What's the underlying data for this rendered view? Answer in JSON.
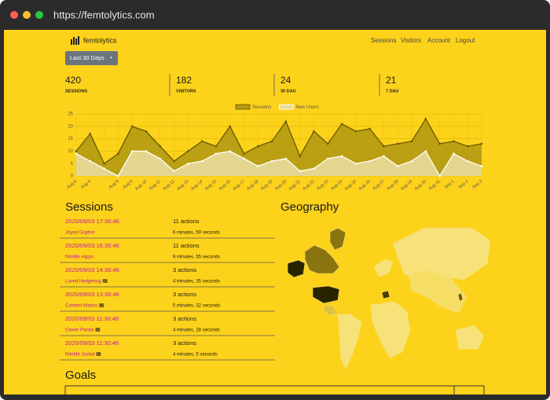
{
  "browser": {
    "url": "https://femtolytics.com"
  },
  "nav": {
    "brand": "femtolytics",
    "links": [
      "Sessions",
      "Visitors",
      "Account",
      "Logout"
    ]
  },
  "range_button": "Last 30 Days",
  "stats": [
    {
      "value": 420,
      "label": "SESSIONS"
    },
    {
      "value": 182,
      "label": "VISITORS"
    },
    {
      "value": 24,
      "label": "30 DAU"
    },
    {
      "value": 21,
      "label": "7 DAU"
    }
  ],
  "chart": {
    "type": "line",
    "categories": [
      "Aug 5",
      "Aug 6",
      null,
      "Aug 8",
      "Aug 9",
      "Aug 10",
      "Aug 11",
      "Aug 12",
      "Aug 13",
      "Aug 14",
      "Aug 15",
      "Aug 16",
      "Aug 17",
      "Aug 18",
      "Aug 19",
      "Aug 20",
      "Aug 21",
      "Aug 22",
      "Aug 23",
      "Aug 24",
      "Aug 25",
      "Aug 26",
      "Aug 27",
      "Aug 28",
      "Aug 29",
      "Aug 30",
      "Aug 31",
      "Sep 1",
      "Sep 2",
      "Sep 3"
    ],
    "series": [
      {
        "name": "Sessions",
        "color": "#6b5a00",
        "fill": "#b39a12",
        "values": [
          10,
          17,
          5,
          9,
          20,
          18,
          12,
          6,
          10,
          14,
          12,
          20,
          9,
          12,
          14,
          22,
          8,
          18,
          13,
          21,
          18,
          19,
          12,
          13,
          14,
          23,
          13,
          14,
          12,
          13
        ]
      },
      {
        "name": "New Users",
        "color": "#ffffff",
        "fill": "#e9dc9c",
        "values": [
          9,
          6,
          3,
          0,
          10,
          10,
          7,
          2,
          5,
          6,
          9,
          10,
          7,
          4,
          6,
          7,
          2,
          3,
          7,
          8,
          5,
          6,
          8,
          4,
          6,
          10,
          0,
          9,
          6,
          4
        ]
      }
    ],
    "ylim": [
      0,
      25
    ],
    "yticks": [
      0,
      5,
      10,
      15,
      20,
      25
    ],
    "grid": true
  },
  "sessions": {
    "title": "Sessions",
    "rows": [
      {
        "time": "2020/09/03 17:30:46",
        "name": "Joyed Gopher",
        "actions": "11 actions",
        "duration": "6 minutes, 59 seconds"
      },
      {
        "time": "2020/09/03 16:30:46",
        "name": "Nimble Hippo",
        "actions": "11 actions",
        "duration": "9 minutes, 55 seconds"
      },
      {
        "time": "2020/09/03 14:30:46",
        "name": "Loved Hedgehog",
        "actions": "3 actions",
        "duration": "4 minutes, 35 seconds"
      },
      {
        "time": "2020/09/03 13:30:46",
        "name": "Content Walrus",
        "actions": "3 actions",
        "duration": "5 minutes, 32 seconds"
      },
      {
        "time": "2020/09/03 11:30:46",
        "name": "Clever Panda",
        "actions": "3 actions",
        "duration": "4 minutes, 28 seconds"
      },
      {
        "time": "2020/09/03 11:30:46",
        "name": "Nimble Jackal",
        "actions": "3 actions",
        "duration": "4 minutes, 5 seconds"
      }
    ]
  },
  "geography": {
    "title": "Geography"
  },
  "goals": {
    "title": "Goals"
  }
}
